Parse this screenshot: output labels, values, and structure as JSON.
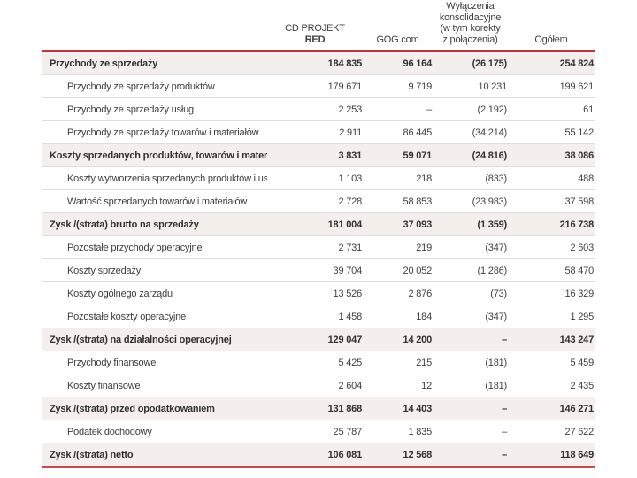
{
  "document": {
    "type": "consolidated-income-statement-by-segment",
    "language": "pl"
  },
  "colors": {
    "accent_red": "#c4333c",
    "section_row_bg": "#f4eeec",
    "row_border": "#dedede",
    "text": "#3e3e3e",
    "background": "#ffffff"
  },
  "table": {
    "columns": [
      {
        "name": "cdprojekt-red",
        "lines": [
          "CD PROJEKT",
          "RED"
        ]
      },
      {
        "name": "gog",
        "lines": [
          "GOG.com"
        ]
      },
      {
        "name": "wylaczenia-konsolidacyjne",
        "lines": [
          "Wyłączenia",
          "konsolidacyjne",
          "(w tym korekty",
          "z połączenia)"
        ]
      },
      {
        "name": "ogolem",
        "lines": [
          "Ogółem"
        ]
      }
    ],
    "rows": [
      {
        "label": "Przychody ze sprzedaży",
        "bold": true,
        "values": [
          "184 835",
          "96 164",
          "(26 175)",
          "254 824"
        ]
      },
      {
        "label": "Przychody ze sprzedaży produktów",
        "bold": false,
        "values": [
          "179 671",
          "9 719",
          "10 231",
          "199 621"
        ]
      },
      {
        "label": "Przychody ze sprzedaży usług",
        "bold": false,
        "values": [
          "2 253",
          "–",
          "(2 192)",
          "61"
        ]
      },
      {
        "label": "Przychody ze sprzedaży towarów i materiałów",
        "bold": false,
        "values": [
          "2 911",
          "86 445",
          "(34 214)",
          "55 142"
        ]
      },
      {
        "label": "Koszty sprzedanych produktów, towarów i materiałów",
        "bold": true,
        "values": [
          "3 831",
          "59 071",
          "(24 816)",
          "38 086"
        ]
      },
      {
        "label": "Koszty wytworzenia sprzedanych produktów i usług",
        "bold": false,
        "values": [
          "1 103",
          "218",
          "(833)",
          "488"
        ]
      },
      {
        "label": "Wartość sprzedanych towarów i materiałów",
        "bold": false,
        "values": [
          "2 728",
          "58 853",
          "(23 983)",
          "37 598"
        ]
      },
      {
        "label": "Zysk /(strata) brutto na sprzedaży",
        "bold": true,
        "values": [
          "181 004",
          "37 093",
          "(1 359)",
          "216 738"
        ]
      },
      {
        "label": "Pozostałe przychody operacyjne",
        "bold": false,
        "values": [
          "2 731",
          "219",
          "(347)",
          "2 603"
        ]
      },
      {
        "label": "Koszty sprzedaży",
        "bold": false,
        "values": [
          "39 704",
          "20 052",
          "(1 286)",
          "58 470"
        ]
      },
      {
        "label": "Koszty ogólnego zarządu",
        "bold": false,
        "values": [
          "13 526",
          "2 876",
          "(73)",
          "16 329"
        ]
      },
      {
        "label": "Pozostałe koszty operacyjne",
        "bold": false,
        "values": [
          "1 458",
          "184",
          "(347)",
          "1 295"
        ]
      },
      {
        "label": "Zysk /(strata) na działalności operacyjnej",
        "bold": true,
        "values": [
          "129 047",
          "14 200",
          "–",
          "143 247"
        ]
      },
      {
        "label": "Przychody finansowe",
        "bold": false,
        "values": [
          "5 425",
          "215",
          "(181)",
          "5 459"
        ]
      },
      {
        "label": "Koszty finansowe",
        "bold": false,
        "values": [
          "2 604",
          "12",
          "(181)",
          "2 435"
        ]
      },
      {
        "label": "Zysk /(strata) przed opodatkowaniem",
        "bold": true,
        "values": [
          "131 868",
          "14 403",
          "–",
          "146 271"
        ]
      },
      {
        "label": "Podatek dochodowy",
        "bold": false,
        "values": [
          "25 787",
          "1 835",
          "–",
          "27 622"
        ]
      },
      {
        "label": "Zysk /(strata) netto",
        "bold": true,
        "values": [
          "106 081",
          "12 568",
          "–",
          "118 649"
        ]
      }
    ]
  }
}
